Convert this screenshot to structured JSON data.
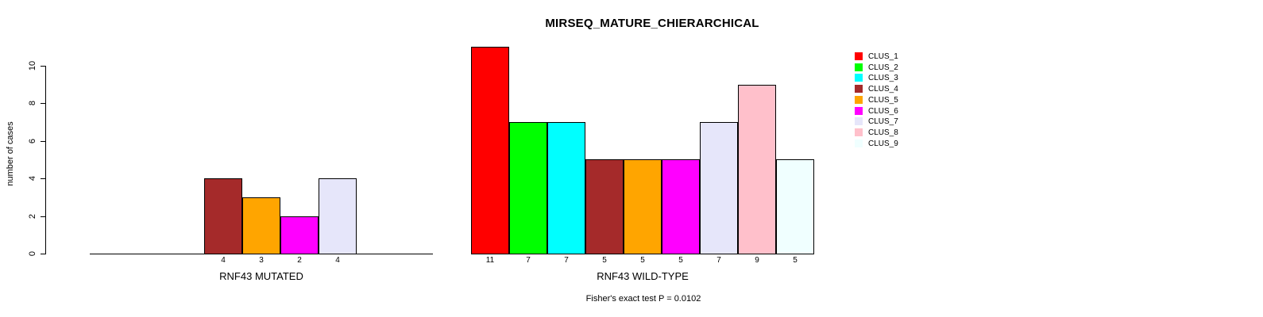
{
  "chart_data": {
    "type": "bar",
    "title": "MIRSEQ_MATURE_CHIERARCHICAL",
    "ylabel": "number of cases",
    "ylim": [
      0,
      11
    ],
    "yticks": [
      0,
      2,
      4,
      6,
      8,
      10
    ],
    "grid": false,
    "legend_position": "top-right",
    "categories": [
      "CLUS_1",
      "CLUS_2",
      "CLUS_3",
      "CLUS_4",
      "CLUS_5",
      "CLUS_6",
      "CLUS_7",
      "CLUS_8",
      "CLUS_9"
    ],
    "colors": [
      "#FF0000",
      "#00FF00",
      "#00FFFF",
      "#A52A2A",
      "#FFA500",
      "#FF00FF",
      "#E6E6FA",
      "#FFC0CB",
      "#F0FFFF"
    ],
    "groups": [
      {
        "label": "RNF43 MUTATED",
        "values": [
          0,
          0,
          0,
          4,
          3,
          2,
          4,
          0,
          0
        ]
      },
      {
        "label": "RNF43 WILD-TYPE",
        "values": [
          11,
          7,
          7,
          5,
          5,
          5,
          7,
          9,
          5
        ]
      }
    ],
    "footnote": "Fisher's exact test P = 0.0102"
  }
}
